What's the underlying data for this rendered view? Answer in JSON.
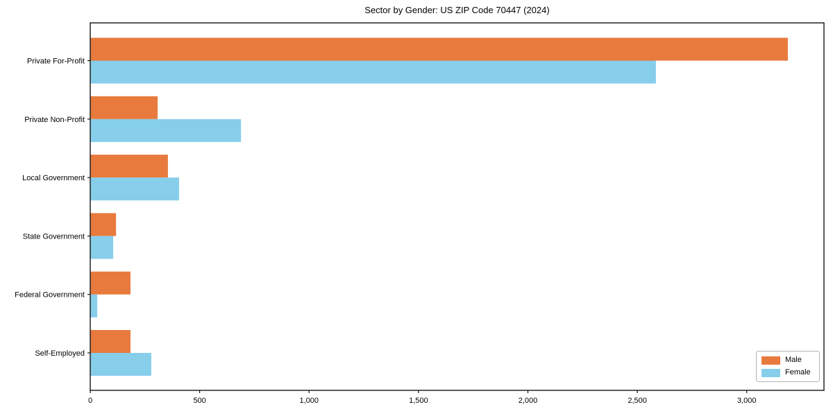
{
  "chart_data": {
    "type": "bar",
    "orientation": "horizontal",
    "title": "Sector by Gender: US ZIP Code 70447 (2024)",
    "categories": [
      "Private For-Profit",
      "Private Non-Profit",
      "Local Government",
      "State Government",
      "Federal Government",
      "Self-Employed"
    ],
    "series": [
      {
        "name": "Male",
        "color": "#e87a3d",
        "values": [
          3186,
          306,
          353,
          116,
          182,
          182
        ]
      },
      {
        "name": "Female",
        "color": "#87ceeb",
        "values": [
          2583,
          687,
          404,
          103,
          30,
          277
        ]
      }
    ],
    "xlabel": "",
    "ylabel": "",
    "xlim": [
      0,
      3353
    ],
    "xticks": [
      0,
      500,
      1000,
      1500,
      2000,
      2500,
      3000
    ],
    "xtick_labels": [
      "0",
      "500",
      "1,000",
      "1,500",
      "2,000",
      "2,500",
      "3,000"
    ],
    "grid": false,
    "legend": {
      "position": "lower right"
    },
    "axis_color": "#000000",
    "tick_label_color": "#000000"
  }
}
